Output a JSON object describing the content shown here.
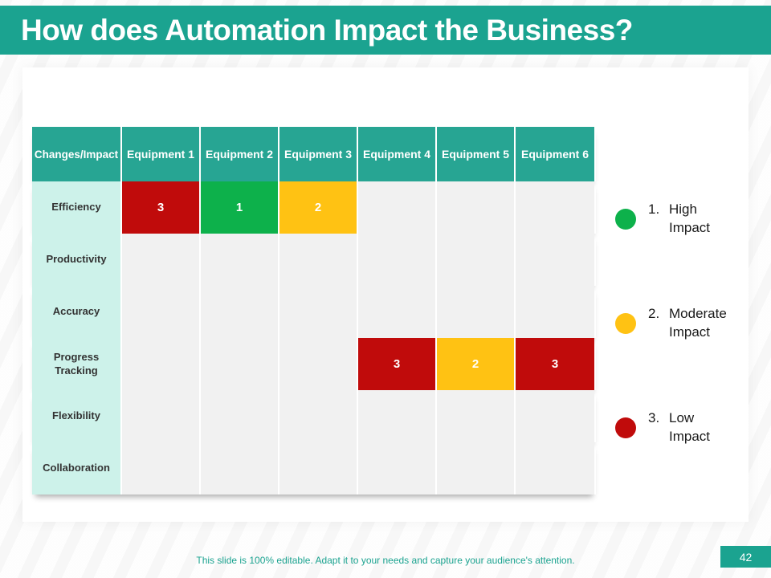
{
  "title": "How does Automation Impact the Business?",
  "table": {
    "header": [
      "Changes/Impact",
      "Equipment 1",
      "Equipment 2",
      "Equipment 3",
      "Equipment 4",
      "Equipment 5",
      "Equipment 6"
    ],
    "rows": [
      {
        "label": "Efficiency",
        "cells": [
          {
            "value": "3",
            "color": "red"
          },
          {
            "value": "1",
            "color": "green"
          },
          {
            "value": "2",
            "color": "yellow"
          },
          null,
          null,
          null
        ]
      },
      {
        "label": "Productivity",
        "cells": [
          null,
          null,
          null,
          null,
          null,
          null
        ]
      },
      {
        "label": "Accuracy",
        "cells": [
          null,
          null,
          null,
          null,
          null,
          null
        ]
      },
      {
        "label": "Progress Tracking",
        "cells": [
          null,
          null,
          null,
          {
            "value": "3",
            "color": "red"
          },
          {
            "value": "2",
            "color": "yellow"
          },
          {
            "value": "3",
            "color": "red"
          }
        ]
      },
      {
        "label": "Flexibility",
        "cells": [
          null,
          null,
          null,
          null,
          null,
          null
        ]
      },
      {
        "label": "Collaboration",
        "cells": [
          null,
          null,
          null,
          null,
          null,
          null
        ]
      }
    ]
  },
  "legend": [
    {
      "number": "1.",
      "label": "High Impact",
      "color": "#0db14b"
    },
    {
      "number": "2.",
      "label": "Moderate Impact",
      "color": "#ffc213"
    },
    {
      "number": "3.",
      "label": "Low Impact",
      "color": "#c00b0b"
    }
  ],
  "footer": {
    "note": "This slide is 100% editable.  Adapt it to your needs and capture your audience's attention.",
    "page": "42"
  },
  "colors": {
    "accent_teal": "#1ba390",
    "header_bg": "#27a593",
    "row_label_bg": "#cdf2ea",
    "cell_bg": "#f1f1f1",
    "cell": {
      "red": "#c00b0b",
      "green": "#0db14b",
      "yellow": "#ffc213"
    }
  }
}
